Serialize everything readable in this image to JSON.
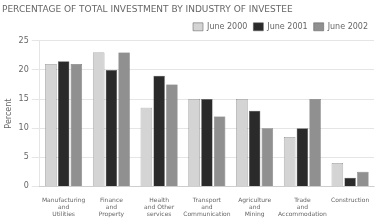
{
  "chart_data": {
    "type": "bar",
    "title": "PERCENTAGE OF TOTAL INVESTMENT BY INDUSTRY OF INVESTEE",
    "ylabel": "Percent",
    "categories": [
      "Manufacturing\nand\nUtilities",
      "Finance\nand\nProperty",
      "Health\nand Other\nservices",
      "Transport\nand\nCommunication",
      "Agriculture\nand\nMining",
      "Trade\nand\nAccommodation",
      "Construction"
    ],
    "series": [
      {
        "name": "June 2000",
        "color": "#d4d4d4",
        "values": [
          21.0,
          23.0,
          13.5,
          15.0,
          15.0,
          8.5,
          4.0
        ]
      },
      {
        "name": "June 2001",
        "color": "#2a2a2a",
        "values": [
          21.5,
          20.0,
          19.0,
          15.0,
          13.0,
          10.0,
          1.5
        ]
      },
      {
        "name": "June 2002",
        "color": "#909090",
        "values": [
          21.0,
          23.0,
          17.5,
          12.0,
          10.0,
          15.0,
          2.5
        ]
      }
    ],
    "ylim": [
      0,
      25
    ],
    "yticks": [
      0,
      5,
      10,
      15,
      20,
      25
    ],
    "grid": true,
    "legend": "upper right"
  }
}
